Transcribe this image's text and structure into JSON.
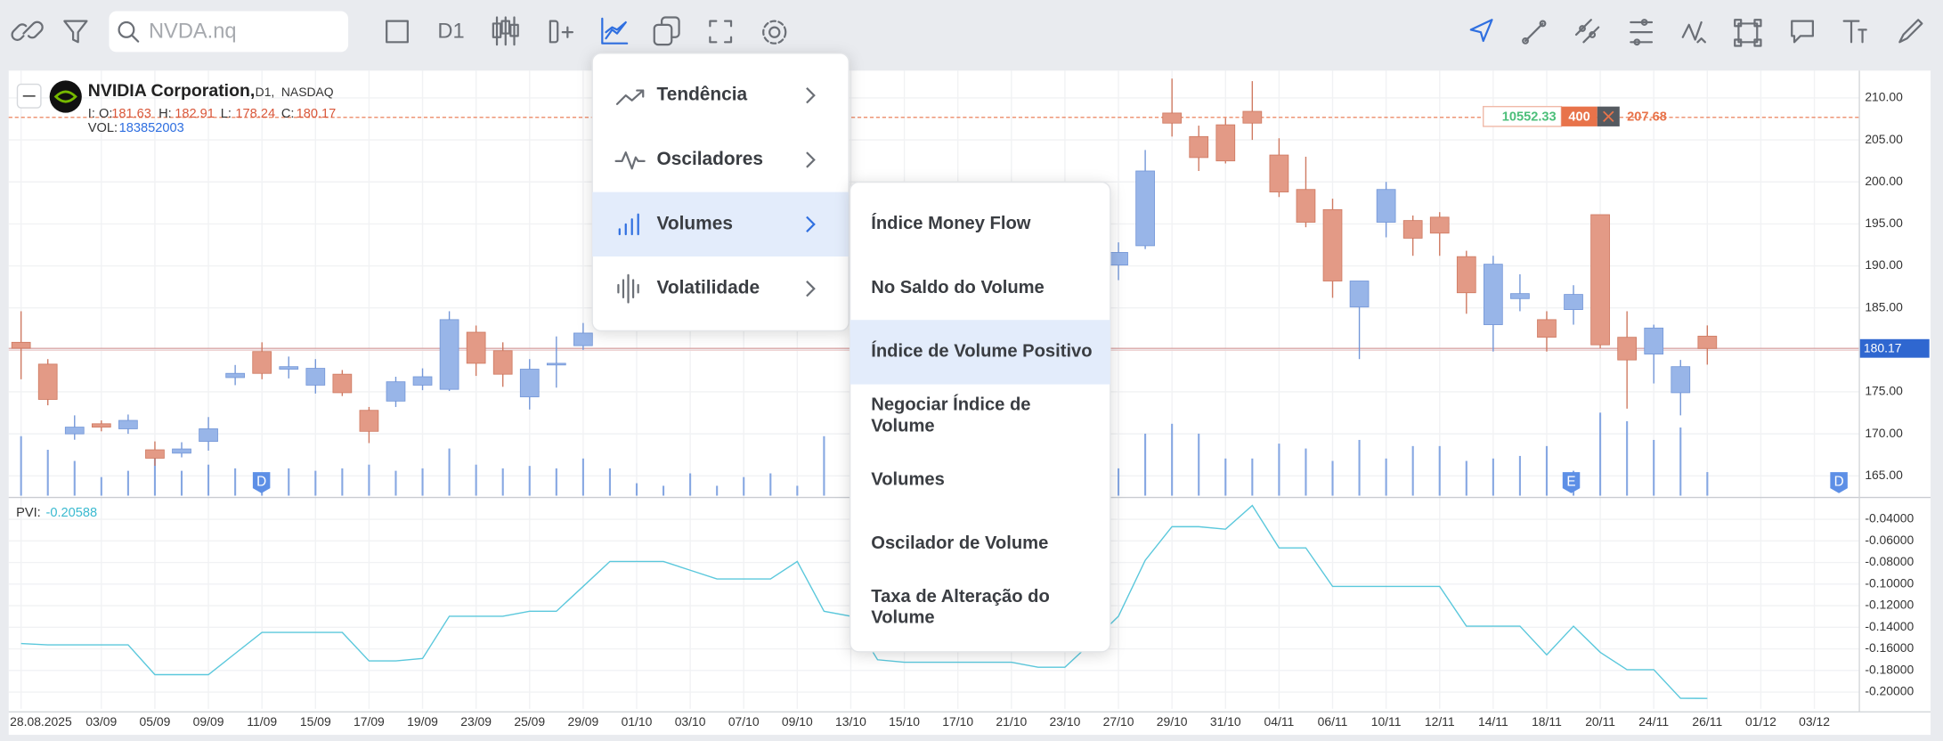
{
  "toolbar": {
    "search_placeholder": "NVDA.nq",
    "interval": "D1"
  },
  "chart_data": {
    "type": "candlestick",
    "title": "NVIDIA Corporation,",
    "interval": "D1,",
    "exchange": "NASDAQ",
    "ohlc_labels": {
      "open": "I: O:",
      "high": "H:",
      "low": "L:",
      "close": "C:"
    },
    "volume_label": "VOL:",
    "up_color": "#98b5e8",
    "down_color": "#e39a86",
    "volume_color": "#86a7e2",
    "grid": true,
    "open": [
      180.9,
      178.3,
      170.0,
      171.2,
      170.6,
      168.1,
      167.7,
      169.1,
      176.7,
      179.8,
      177.7,
      175.8,
      177.1,
      172.8,
      173.9,
      175.8,
      175.3,
      182.1,
      179.9,
      174.4,
      178.2,
      180.5,
      null,
      null,
      null,
      null,
      null,
      null,
      null,
      null,
      null,
      null,
      null,
      null,
      null,
      null,
      null,
      null,
      null,
      null,
      null,
      190.1,
      192.4,
      208.2,
      205.4,
      206.8,
      208.4,
      203.2,
      199.1,
      196.7,
      185.1,
      195.2,
      195.4,
      195.8,
      191.1,
      183.0,
      186.1,
      183.6,
      184.8,
      196.1,
      181.5,
      179.5,
      174.9,
      181.63
    ],
    "high": [
      184.6,
      178.9,
      172.2,
      171.6,
      172.3,
      169.1,
      169.0,
      172.0,
      178.2,
      180.9,
      179.2,
      178.9,
      177.6,
      173.2,
      176.8,
      177.8,
      184.6,
      182.9,
      180.9,
      178.9,
      181.6,
      183.2,
      null,
      null,
      null,
      null,
      null,
      null,
      null,
      null,
      null,
      null,
      null,
      null,
      null,
      null,
      null,
      null,
      null,
      null,
      null,
      192.8,
      203.8,
      212.3,
      206.7,
      207.6,
      212.0,
      205.2,
      203.0,
      198.0,
      188.2,
      200.0,
      196.0,
      196.4,
      191.8,
      191.2,
      189.0,
      184.6,
      187.7,
      196.1,
      184.6,
      183.0,
      178.8,
      182.91
    ],
    "low": [
      176.5,
      173.4,
      169.3,
      170.3,
      170.0,
      166.2,
      167.2,
      168.0,
      175.8,
      176.5,
      176.6,
      174.8,
      174.5,
      168.9,
      173.2,
      175.2,
      175.1,
      176.9,
      175.6,
      172.9,
      175.5,
      180.0,
      null,
      null,
      null,
      null,
      null,
      null,
      null,
      null,
      null,
      null,
      null,
      null,
      null,
      null,
      null,
      null,
      null,
      null,
      null,
      188.3,
      192.0,
      205.4,
      201.3,
      202.2,
      205.0,
      198.2,
      194.6,
      186.2,
      178.9,
      193.4,
      191.2,
      191.2,
      184.3,
      179.8,
      184.6,
      179.8,
      183.0,
      180.2,
      173.0,
      176.0,
      172.2,
      178.24
    ],
    "close": [
      180.2,
      174.1,
      170.8,
      170.8,
      171.6,
      167.1,
      168.2,
      170.6,
      177.2,
      177.2,
      178.0,
      177.8,
      174.9,
      170.3,
      176.2,
      176.8,
      183.6,
      178.4,
      177.1,
      177.7,
      178.4,
      182.0,
      null,
      null,
      null,
      null,
      null,
      null,
      null,
      null,
      null,
      null,
      null,
      null,
      null,
      null,
      null,
      null,
      null,
      null,
      null,
      191.6,
      201.3,
      207.0,
      202.9,
      202.5,
      207.0,
      198.8,
      195.2,
      188.2,
      188.2,
      199.1,
      193.3,
      193.9,
      186.8,
      190.2,
      186.7,
      181.5,
      186.6,
      180.6,
      178.8,
      182.6,
      178.0,
      180.17
    ],
    "volume": [
      464000000,
      358000000,
      271000000,
      145000000,
      194000000,
      339000000,
      194000000,
      242000000,
      213000000,
      174000000,
      213000000,
      194000000,
      213000000,
      242000000,
      194000000,
      213000000,
      368000000,
      242000000,
      213000000,
      232000000,
      213000000,
      290000000,
      213000000,
      97000000,
      77000000,
      174000000,
      77000000,
      145000000,
      174000000,
      77000000,
      464000000,
      null,
      null,
      null,
      null,
      null,
      null,
      null,
      null,
      null,
      null,
      213000000,
      484000000,
      561000000,
      484000000,
      290000000,
      290000000,
      406000000,
      368000000,
      271000000,
      435000000,
      290000000,
      387000000,
      387000000,
      271000000,
      290000000,
      310000000,
      387000000,
      194000000,
      648000000,
      581000000,
      435000000,
      532000000,
      183852003
    ],
    "ylim": [
      162.64,
      213.25
    ],
    "yticks": [
      {
        "value": 210,
        "label": "210.00"
      },
      {
        "value": 205,
        "label": "205.00"
      },
      {
        "value": 200,
        "label": "200.00"
      },
      {
        "value": 195,
        "label": "195.00"
      },
      {
        "value": 190,
        "label": "190.00"
      },
      {
        "value": 185,
        "label": "185.00"
      },
      {
        "value": 180,
        "label": "180.00"
      },
      {
        "value": 175,
        "label": "175.00"
      },
      {
        "value": 170,
        "label": "170.00"
      },
      {
        "value": 165,
        "label": "165.00"
      }
    ],
    "x_labels": [
      "28.08.2025",
      "03/09",
      "05/09",
      "09/09",
      "11/09",
      "15/09",
      "17/09",
      "19/09",
      "23/09",
      "25/09",
      "29/09",
      "01/10",
      "03/10",
      "07/10",
      "09/10",
      "13/10",
      "15/10",
      "17/10",
      "21/10",
      "23/10",
      "27/10",
      "29/10",
      "31/10",
      "04/11",
      "06/11",
      "10/11",
      "12/11",
      "14/11",
      "18/11",
      "20/11",
      "24/11",
      "26/11",
      "01/12",
      "03/12"
    ],
    "events": [
      "D",
      "E",
      "D"
    ],
    "order": {
      "price": 207.68,
      "value": 10552.33,
      "quantity": 400
    },
    "indicator": {
      "name": "PVI:",
      "color": "#5bc8dc",
      "values": [
        -0.1551,
        -0.1563,
        -0.1563,
        -0.1563,
        -0.1563,
        -0.1839,
        -0.1839,
        -0.1839,
        -0.1643,
        -0.1448,
        -0.1448,
        -0.1448,
        -0.1448,
        -0.1712,
        -0.1712,
        -0.1689,
        -0.1298,
        -0.1298,
        -0.1298,
        -0.1252,
        -0.1252,
        -0.1022,
        -0.0791,
        -0.0791,
        -0.0791,
        -0.0872,
        -0.0953,
        -0.0953,
        -0.0953,
        -0.0791,
        -0.1252,
        -0.1298,
        -0.1701,
        -0.1724,
        -0.1724,
        -0.1724,
        -0.1724,
        -0.1724,
        -0.177,
        -0.177,
        -0.154,
        -0.1298,
        -0.078,
        -0.0469,
        -0.0469,
        -0.0492,
        -0.0273,
        -0.0665,
        -0.0665,
        -0.1022,
        -0.1022,
        -0.1022,
        -0.1022,
        -0.1022,
        -0.139,
        -0.139,
        -0.139,
        -0.1655,
        -0.139,
        -0.1632,
        -0.1793,
        -0.1793,
        -0.2058,
        -0.20588
      ],
      "ylim": [
        -0.2155,
        -0.0216
      ],
      "yticks": [
        {
          "value": -0.04,
          "label": "-0.04000"
        },
        {
          "value": -0.06,
          "label": "-0.06000"
        },
        {
          "value": -0.08,
          "label": "-0.08000"
        },
        {
          "value": -0.1,
          "label": "-0.10000"
        },
        {
          "value": -0.12,
          "label": "-0.12000"
        },
        {
          "value": -0.14,
          "label": "-0.14000"
        },
        {
          "value": -0.16,
          "label": "-0.16000"
        },
        {
          "value": -0.18,
          "label": "-0.18000"
        },
        {
          "value": -0.2,
          "label": "-0.20000"
        }
      ]
    }
  },
  "menu": {
    "items": [
      "Tendência",
      "Osciladores",
      "Volumes",
      "Volatilidade"
    ],
    "active": 2
  },
  "submenu": {
    "items": [
      [
        "Índice Money Flow"
      ],
      [
        "No Saldo do Volume"
      ],
      [
        "Índice de Volume Positivo"
      ],
      [
        "Negociar Índice de",
        "Volume"
      ],
      [
        "Volumes"
      ],
      [
        "Oscilador de Volume"
      ],
      [
        "Taxa de Alteração do",
        "Volume"
      ]
    ],
    "active": 2
  }
}
